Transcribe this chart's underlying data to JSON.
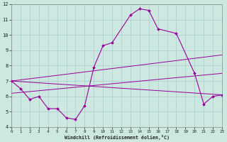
{
  "xlabel": "Windchill (Refroidissement éolien,°C)",
  "bg_color": "#cce8e0",
  "grid_color": "#aacccc",
  "line_color": "#990099",
  "main_series": {
    "x": [
      0,
      1,
      2,
      3,
      4,
      5,
      6,
      7,
      8,
      9,
      10,
      11,
      13,
      14,
      15,
      16,
      18,
      20,
      21,
      22,
      23
    ],
    "y": [
      7.0,
      6.5,
      5.8,
      6.0,
      5.2,
      5.2,
      4.6,
      4.5,
      5.4,
      7.9,
      9.3,
      9.5,
      11.3,
      11.7,
      11.6,
      10.4,
      10.1,
      7.5,
      5.5,
      6.0,
      6.1
    ]
  },
  "trend_lines": [
    {
      "x": [
        0,
        23
      ],
      "y": [
        7.0,
        6.1
      ]
    },
    {
      "x": [
        0,
        23
      ],
      "y": [
        7.0,
        8.7
      ]
    },
    {
      "x": [
        0,
        23
      ],
      "y": [
        6.2,
        7.5
      ]
    }
  ],
  "xlim": [
    0,
    23
  ],
  "ylim": [
    4,
    12
  ],
  "xticks": [
    0,
    1,
    2,
    3,
    4,
    5,
    6,
    7,
    8,
    9,
    10,
    11,
    12,
    13,
    14,
    15,
    16,
    17,
    18,
    19,
    20,
    21,
    22,
    23
  ],
  "yticks": [
    4,
    5,
    6,
    7,
    8,
    9,
    10,
    11,
    12
  ]
}
